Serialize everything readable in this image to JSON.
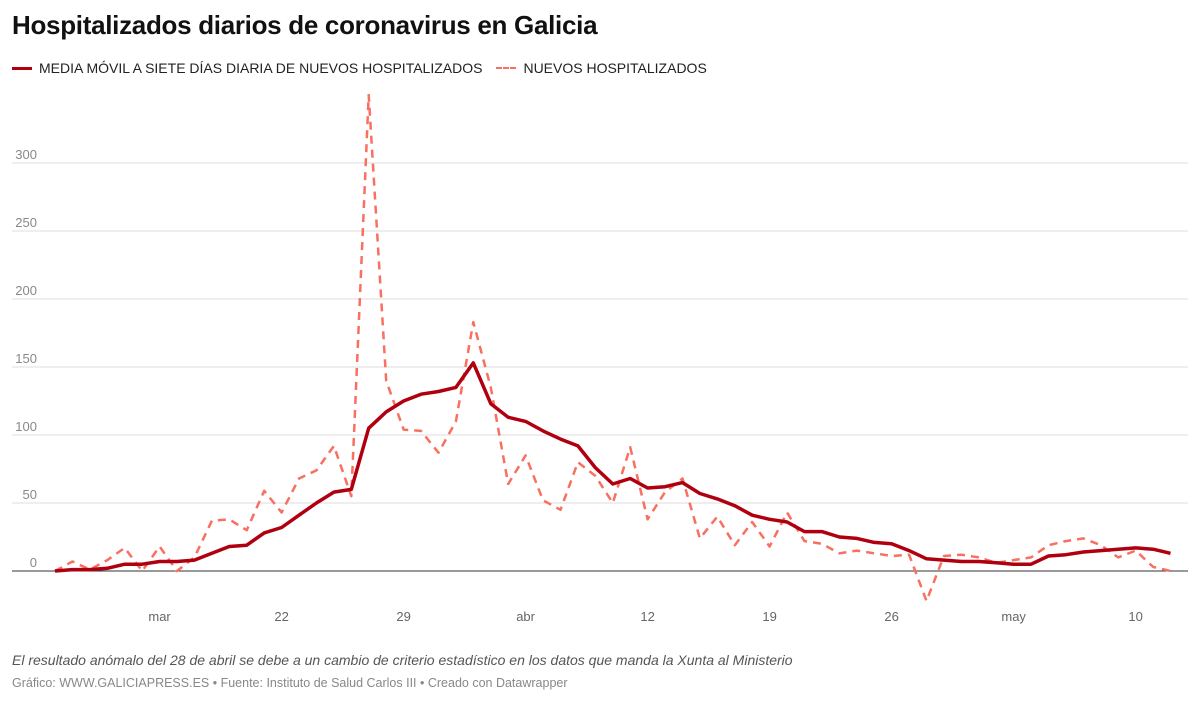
{
  "chart_data": {
    "type": "line",
    "title": "Hospitalizados diarios de coronavirus en Galicia",
    "xlabel": "",
    "ylabel": "",
    "ylim": [
      -25,
      350
    ],
    "grid": true,
    "legend_placement": "top-left",
    "y_ticks": [
      "0",
      "50",
      "100",
      "150",
      "200",
      "250",
      "300"
    ],
    "x_ticks": [
      {
        "date": "03-15",
        "label": "mar"
      },
      {
        "date": "03-22",
        "label": "22"
      },
      {
        "date": "03-29",
        "label": "29"
      },
      {
        "date": "04-05",
        "label": "abr"
      },
      {
        "date": "04-12",
        "label": "12"
      },
      {
        "date": "04-19",
        "label": "19"
      },
      {
        "date": "04-26",
        "label": "26"
      },
      {
        "date": "05-03",
        "label": "may"
      },
      {
        "date": "05-10",
        "label": "10"
      }
    ],
    "x": [
      "03-09",
      "03-10",
      "03-11",
      "03-12",
      "03-13",
      "03-14",
      "03-15",
      "03-16",
      "03-17",
      "03-18",
      "03-19",
      "03-20",
      "03-21",
      "03-22",
      "03-23",
      "03-24",
      "03-25",
      "03-26",
      "03-27",
      "03-28",
      "03-29",
      "03-30",
      "03-31",
      "04-01",
      "04-02",
      "04-03",
      "04-04",
      "04-05",
      "04-06",
      "04-07",
      "04-08",
      "04-09",
      "04-10",
      "04-11",
      "04-12",
      "04-13",
      "04-14",
      "04-15",
      "04-16",
      "04-17",
      "04-18",
      "04-19",
      "04-20",
      "04-21",
      "04-22",
      "04-23",
      "04-24",
      "04-25",
      "04-26",
      "04-27",
      "04-28",
      "04-29",
      "04-30",
      "05-01",
      "05-02",
      "05-03",
      "05-04",
      "05-05",
      "05-06",
      "05-07",
      "05-08",
      "05-09",
      "05-10",
      "05-11",
      "05-12"
    ],
    "series": [
      {
        "name": "MEDIA MÓVIL A SIETE DÍAS DIARIA DE NUEVOS HOSPITALIZADOS",
        "color": "#b00010",
        "style": "solid",
        "values": [
          0,
          1,
          1,
          2,
          5,
          5,
          7,
          7,
          8,
          13,
          18,
          19,
          28,
          32,
          41,
          50,
          58,
          60,
          105,
          117,
          125,
          130,
          132,
          135,
          153,
          123,
          113,
          110,
          103,
          97,
          92,
          76,
          64,
          68,
          61,
          62,
          65,
          57,
          53,
          48,
          41,
          38,
          36,
          29,
          29,
          25,
          24,
          21,
          20,
          15,
          9,
          8,
          7,
          7,
          6,
          5,
          5,
          11,
          12,
          14,
          15,
          16,
          17,
          16,
          13
        ]
      },
      {
        "name": "NUEVOS HOSPITALIZADOS",
        "color": "#f77060",
        "style": "dashed",
        "values": [
          0,
          7,
          1,
          8,
          17,
          0,
          18,
          0,
          10,
          37,
          38,
          30,
          59,
          43,
          68,
          74,
          92,
          55,
          350,
          140,
          104,
          103,
          87,
          110,
          183,
          135,
          64,
          85,
          52,
          45,
          80,
          70,
          50,
          91,
          38,
          58,
          68,
          24,
          40,
          19,
          36,
          18,
          43,
          22,
          20,
          13,
          15,
          13,
          11,
          12,
          -22,
          11,
          12,
          10,
          6,
          8,
          10,
          19,
          22,
          24,
          19,
          10,
          15,
          3,
          0
        ]
      }
    ]
  },
  "notes": "El resultado anómalo del 28 de abril se debe a un cambio de criterio estadístico en los datos que manda la Xunta al Ministerio",
  "footer": "Gráfico: WWW.GALICIAPRESS.ES • Fuente: Instituto de Salud Carlos III • Creado con Datawrapper"
}
